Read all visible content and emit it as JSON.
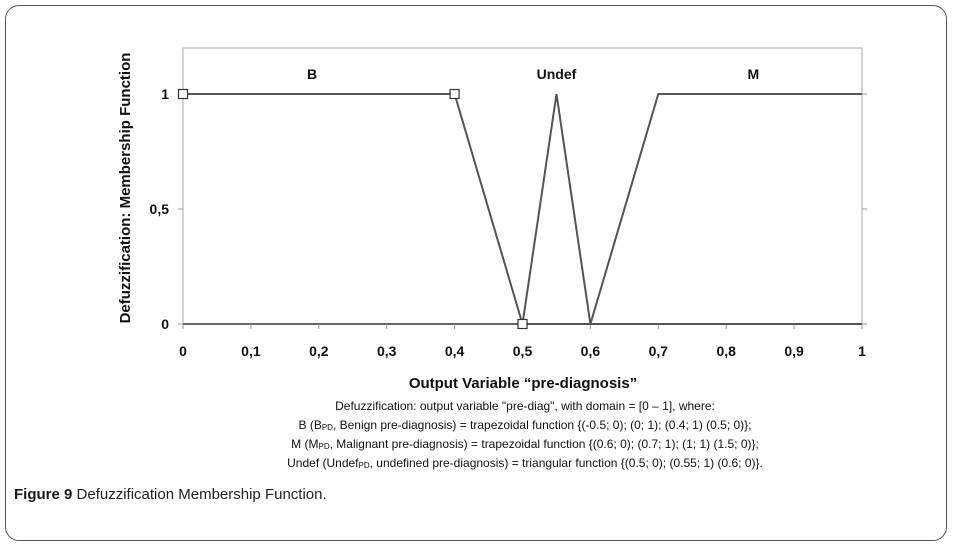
{
  "chart_data": {
    "type": "line",
    "title": "",
    "xlabel": "Output Variable “pre-diagnosis”",
    "ylabel": "Defuzzification: Membership Function",
    "xlim": [
      0,
      1
    ],
    "ylim": [
      0,
      1.2
    ],
    "x_ticks": [
      "0",
      "0,1",
      "0,2",
      "0,3",
      "0,4",
      "0,5",
      "0,6",
      "0,7",
      "0,8",
      "0,9",
      "1"
    ],
    "x_tick_values": [
      0,
      0.1,
      0.2,
      0.3,
      0.4,
      0.5,
      0.6,
      0.7,
      0.8,
      0.9,
      1.0
    ],
    "y_ticks": [
      "0",
      "0,5",
      "1"
    ],
    "y_tick_values": [
      0,
      0.5,
      1
    ],
    "grid": false,
    "legend": "none",
    "line_color": "#555555",
    "region_labels": [
      {
        "text": "B",
        "x": 0.19
      },
      {
        "text": "Undef",
        "x": 0.55
      },
      {
        "text": "M",
        "x": 0.84
      }
    ],
    "series": [
      {
        "name": "B",
        "x": [
          0,
          0.4,
          0.5,
          1.0
        ],
        "y": [
          1,
          1,
          0,
          0
        ],
        "markers_at": [
          0,
          0.4
        ]
      },
      {
        "name": "Undef",
        "x": [
          0.5,
          0.55,
          0.6
        ],
        "y": [
          0,
          1,
          0
        ]
      },
      {
        "name": "M",
        "x": [
          0.6,
          0.7,
          1.0
        ],
        "y": [
          0,
          1,
          1
        ]
      }
    ],
    "marker_points": [
      [
        0,
        1
      ],
      [
        0.4,
        1
      ],
      [
        0.5,
        0
      ]
    ]
  },
  "description": {
    "line1": "Defuzzification: output variable \"pre-diag\", with domain = [0 – 1], where:",
    "line2_pre": "B (B",
    "line2_sub": "PD",
    "line2_post": ", Benign pre-diagnosis) = trapezoidal function {(-0.5; 0); (0; 1); (0.4; 1) (0.5; 0)};",
    "line3_pre": "M (M",
    "line3_sub": "PD",
    "line3_post": ", Malignant pre-diagnosis) = trapezoidal function {(0.6; 0); (0.7; 1); (1; 1) (1.5; 0)};",
    "line4_pre": "Undef (Undef",
    "line4_sub": "PD",
    "line4_post": ", undefined pre-diagnosis) = triangular function {(0.5; 0); (0.55; 1) (0.6; 0)}."
  },
  "caption": {
    "label": "Figure 9",
    "text": "Defuzzification Membership Function."
  }
}
